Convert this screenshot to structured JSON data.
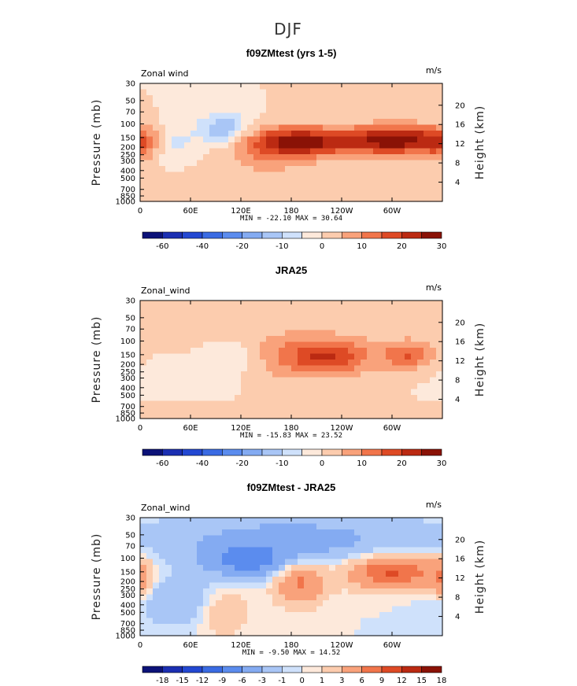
{
  "figure": {
    "title": "DJF"
  },
  "chart_data": [
    {
      "type": "heatmap",
      "title": "f09ZMtest (yrs 1-5)",
      "left_label": "Zonal wind",
      "right_label": "m/s",
      "xlabels": [
        "0",
        "60E",
        "120E",
        "180",
        "120W",
        "60W"
      ],
      "ylabel": "Pressure (mb)",
      "ylabels": [
        "30",
        "50",
        "70",
        "100",
        "150",
        "200",
        "250",
        "300",
        "400",
        "500",
        "700",
        "850",
        "1000"
      ],
      "ylabel_right": "Height (km)",
      "yright_labels": [
        "4",
        "8",
        "12",
        "16",
        "20"
      ],
      "stats": "MIN = -22.10   MAX = 30.64",
      "min": -22.1,
      "max": 30.64,
      "levels": [
        -60,
        -50,
        -40,
        -30,
        -20,
        -15,
        -10,
        -5,
        0,
        5,
        10,
        15,
        20,
        25,
        30
      ],
      "level_labels": [
        "-60",
        "-40",
        "-20",
        "-10",
        "0",
        "10",
        "20",
        "30"
      ],
      "colors": [
        "#0c1278",
        "#1b2fb2",
        "#2348d2",
        "#3a6be3",
        "#5b8cee",
        "#84abf2",
        "#a9c6f6",
        "#cfe1fb",
        "#fde9db",
        "#fcccae",
        "#f9a27b",
        "#f1754b",
        "#de4a25",
        "#bb2a12",
        "#8a1206"
      ],
      "features": [
        {
          "lon": 150,
          "p": 250,
          "v": 7,
          "sx": 40,
          "sy": 0.5
        },
        {
          "lon": 195,
          "p": 170,
          "v": 26,
          "sx": 48,
          "sy": 0.3
        },
        {
          "lon": 305,
          "p": 160,
          "v": 28,
          "sx": 36,
          "sy": 0.3
        },
        {
          "lon": 0,
          "p": 180,
          "v": 12,
          "sx": 18,
          "sy": 0.35
        },
        {
          "lon": 100,
          "p": 120,
          "v": -16,
          "sx": 22,
          "sy": 0.35
        },
        {
          "lon": 40,
          "p": 180,
          "v": -7,
          "sx": 18,
          "sy": 0.4
        },
        {
          "lon": 60,
          "p": 700,
          "v": 5,
          "sx": 40,
          "sy": 0.3
        }
      ]
    },
    {
      "type": "heatmap",
      "title": "JRA25",
      "left_label": "Zonal_wind",
      "right_label": "m/s",
      "xlabels": [
        "0",
        "60E",
        "120E",
        "180",
        "120W",
        "60W"
      ],
      "ylabel": "Pressure (mb)",
      "ylabels": [
        "30",
        "50",
        "70",
        "100",
        "150",
        "200",
        "250",
        "300",
        "400",
        "500",
        "700",
        "850",
        "1000"
      ],
      "ylabel_right": "Height (km)",
      "yright_labels": [
        "4",
        "8",
        "12",
        "16",
        "20"
      ],
      "stats": "MIN = -15.83   MAX = 23.52",
      "min": -15.83,
      "max": 23.52,
      "levels": [
        -60,
        -50,
        -40,
        -30,
        -20,
        -15,
        -10,
        -5,
        0,
        5,
        10,
        15,
        20,
        25,
        30
      ],
      "level_labels": [
        "-60",
        "-40",
        "-20",
        "-10",
        "0",
        "10",
        "20",
        "30"
      ],
      "colors": [
        "#0c1278",
        "#1b2fb2",
        "#2348d2",
        "#3a6be3",
        "#5b8cee",
        "#84abf2",
        "#a9c6f6",
        "#cfe1fb",
        "#fde9db",
        "#fcccae",
        "#f9a27b",
        "#f1754b",
        "#de4a25",
        "#bb2a12",
        "#8a1206"
      ],
      "features": [
        {
          "lon": 180,
          "p": 150,
          "v": 9,
          "sx": 70,
          "sy": 0.55
        },
        {
          "lon": 225,
          "p": 160,
          "v": 14,
          "sx": 32,
          "sy": 0.35
        },
        {
          "lon": 320,
          "p": 150,
          "v": 14,
          "sx": 22,
          "sy": 0.3
        },
        {
          "lon": 110,
          "p": 160,
          "v": -9,
          "sx": 25,
          "sy": 0.35
        },
        {
          "lon": 60,
          "p": 300,
          "v": -4,
          "sx": 40,
          "sy": 0.5
        },
        {
          "lon": 90,
          "p": 850,
          "v": 3,
          "sx": 60,
          "sy": 0.25
        }
      ]
    },
    {
      "type": "heatmap",
      "title": "f09ZMtest - JRA25",
      "left_label": "Zonal_wind",
      "right_label": "m/s",
      "xlabels": [
        "0",
        "60E",
        "120E",
        "180",
        "120W",
        "60W"
      ],
      "ylabel": "Pressure (mb)",
      "ylabels": [
        "30",
        "50",
        "70",
        "100",
        "150",
        "200",
        "250",
        "300",
        "400",
        "500",
        "700",
        "850",
        "1000"
      ],
      "ylabel_right": "Height (km)",
      "yright_labels": [
        "4",
        "8",
        "12",
        "16",
        "20"
      ],
      "stats": "MIN = -9.50   MAX = 14.52",
      "min": -9.5,
      "max": 14.52,
      "levels": [
        -18,
        -15,
        -12,
        -9,
        -6,
        -3,
        -1,
        0,
        1,
        3,
        6,
        9,
        12,
        15,
        18
      ],
      "level_labels": [
        "-18",
        "-15",
        "-12",
        "-9",
        "-6",
        "-3",
        "-1",
        "0",
        "1",
        "3",
        "6",
        "9",
        "12",
        "15",
        "18"
      ],
      "colors": [
        "#0c1278",
        "#1b2fb2",
        "#2348d2",
        "#3a6be3",
        "#5b8cee",
        "#84abf2",
        "#a9c6f6",
        "#cfe1fb",
        "#fde9db",
        "#fcccae",
        "#f9a27b",
        "#f1754b",
        "#de4a25",
        "#bb2a12",
        "#8a1206"
      ],
      "features": [
        {
          "lon": 180,
          "p": 60,
          "v": -4,
          "sx": 120,
          "sy": 0.6
        },
        {
          "lon": 130,
          "p": 110,
          "v": -6,
          "sx": 35,
          "sy": 0.35
        },
        {
          "lon": 190,
          "p": 200,
          "v": 7,
          "sx": 22,
          "sy": 0.45
        },
        {
          "lon": 300,
          "p": 150,
          "v": 10,
          "sx": 38,
          "sy": 0.35
        },
        {
          "lon": 0,
          "p": 200,
          "v": 5,
          "sx": 10,
          "sy": 0.4
        },
        {
          "lon": 100,
          "p": 500,
          "v": 3,
          "sx": 20,
          "sy": 0.5
        },
        {
          "lon": 40,
          "p": 350,
          "v": -3,
          "sx": 35,
          "sy": 0.5
        }
      ]
    }
  ]
}
